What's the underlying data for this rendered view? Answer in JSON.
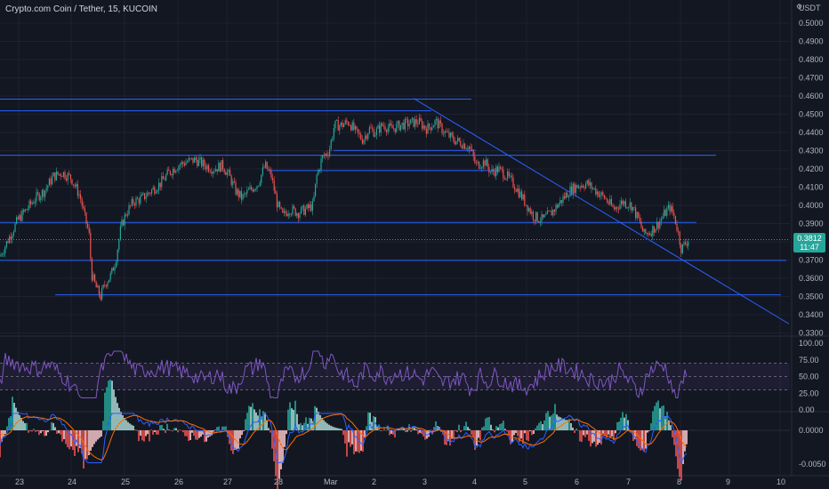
{
  "header": {
    "title": "Crypto.com Coin / Tether, 15, KUCOIN",
    "currency": "USDT"
  },
  "colors": {
    "background": "#131722",
    "bull": "#26a69a",
    "bear": "#ef5350",
    "hline": "#2962ff",
    "rsi": "#7e57c2",
    "macd": "#2962ff",
    "signal": "#ff6d00"
  },
  "price_badge": {
    "price": "0.3812",
    "countdown": "11:47"
  },
  "chart_data": [
    {
      "type": "candlestick",
      "title": "Crypto.com Coin / Tether, 15, KUCOIN",
      "y_unit": "USDT",
      "ylim": [
        0.33,
        0.505
      ],
      "y_ticks": [
        "0.5000",
        "0.4900",
        "0.4800",
        "0.4700",
        "0.4600",
        "0.4500",
        "0.4400",
        "0.4300",
        "0.4200",
        "0.4100",
        "0.4000",
        "0.3900",
        "0.3800",
        "0.3700",
        "0.3600",
        "0.3500",
        "0.3400",
        "0.3300"
      ],
      "x_ticks": [
        "23",
        "24",
        "25",
        "26",
        "27",
        "28",
        "Mar",
        "2",
        "3",
        "4",
        "5",
        "6",
        "7",
        "8",
        "9",
        "10"
      ],
      "price_path": [
        [
          0,
          0.372
        ],
        [
          10,
          0.382
        ],
        [
          20,
          0.392
        ],
        [
          30,
          0.398
        ],
        [
          40,
          0.404
        ],
        [
          50,
          0.408
        ],
        [
          60,
          0.416
        ],
        [
          70,
          0.418
        ],
        [
          80,
          0.415
        ],
        [
          90,
          0.405
        ],
        [
          96,
          0.392
        ],
        [
          100,
          0.385
        ],
        [
          103,
          0.362
        ],
        [
          108,
          0.355
        ],
        [
          113,
          0.35
        ],
        [
          118,
          0.357
        ],
        [
          125,
          0.362
        ],
        [
          130,
          0.37
        ],
        [
          136,
          0.388
        ],
        [
          142,
          0.396
        ],
        [
          150,
          0.402
        ],
        [
          160,
          0.404
        ],
        [
          170,
          0.408
        ],
        [
          180,
          0.412
        ],
        [
          190,
          0.418
        ],
        [
          200,
          0.422
        ],
        [
          210,
          0.424
        ],
        [
          220,
          0.425
        ],
        [
          230,
          0.422
        ],
        [
          240,
          0.42
        ],
        [
          250,
          0.422
        ],
        [
          258,
          0.416
        ],
        [
          265,
          0.408
        ],
        [
          272,
          0.404
        ],
        [
          280,
          0.408
        ],
        [
          290,
          0.412
        ],
        [
          298,
          0.422
        ],
        [
          305,
          0.416
        ],
        [
          312,
          0.4
        ],
        [
          318,
          0.394
        ],
        [
          325,
          0.398
        ],
        [
          335,
          0.396
        ],
        [
          345,
          0.398
        ],
        [
          352,
          0.4
        ],
        [
          356,
          0.416
        ],
        [
          362,
          0.426
        ],
        [
          370,
          0.43
        ],
        [
          376,
          0.444
        ],
        [
          384,
          0.444
        ],
        [
          392,
          0.446
        ],
        [
          400,
          0.44
        ],
        [
          408,
          0.436
        ],
        [
          415,
          0.442
        ],
        [
          422,
          0.44
        ],
        [
          430,
          0.444
        ],
        [
          440,
          0.442
        ],
        [
          450,
          0.444
        ],
        [
          460,
          0.445
        ],
        [
          470,
          0.446
        ],
        [
          480,
          0.442
        ],
        [
          490,
          0.446
        ],
        [
          500,
          0.44
        ],
        [
          510,
          0.436
        ],
        [
          520,
          0.434
        ],
        [
          528,
          0.432
        ],
        [
          535,
          0.422
        ],
        [
          545,
          0.424
        ],
        [
          552,
          0.418
        ],
        [
          560,
          0.42
        ],
        [
          570,
          0.416
        ],
        [
          580,
          0.41
        ],
        [
          590,
          0.402
        ],
        [
          600,
          0.394
        ],
        [
          610,
          0.392
        ],
        [
          620,
          0.396
        ],
        [
          630,
          0.402
        ],
        [
          640,
          0.408
        ],
        [
          650,
          0.411
        ],
        [
          660,
          0.412
        ],
        [
          670,
          0.408
        ],
        [
          680,
          0.404
        ],
        [
          690,
          0.398
        ],
        [
          700,
          0.402
        ],
        [
          710,
          0.4
        ],
        [
          718,
          0.392
        ],
        [
          724,
          0.384
        ],
        [
          732,
          0.386
        ],
        [
          740,
          0.39
        ],
        [
          748,
          0.396
        ],
        [
          753,
          0.399
        ],
        [
          758,
          0.394
        ],
        [
          762,
          0.386
        ],
        [
          766,
          0.376
        ],
        [
          770,
          0.379
        ],
        [
          774,
          0.381
        ]
      ],
      "horizontal_levels": [
        {
          "price": 0.4583,
          "x_start": 0,
          "x_end": 530
        },
        {
          "price": 0.4519,
          "x_start": 0,
          "x_end": 485
        },
        {
          "price": 0.4275,
          "x_start": 0,
          "x_end": 805
        },
        {
          "price": 0.4301,
          "x_start": 375,
          "x_end": 535
        },
        {
          "price": 0.4191,
          "x_start": 300,
          "x_end": 560
        },
        {
          "price": 0.3906,
          "x_start": 0,
          "x_end": 783
        },
        {
          "price": 0.3698,
          "x_start": 0,
          "x_end": 884
        },
        {
          "price": 0.3509,
          "x_start": 62,
          "x_end": 878
        }
      ],
      "trendline": {
        "start": [
          465,
          0.4587
        ],
        "end": [
          887,
          0.335
        ]
      },
      "current_price": 0.3812
    },
    {
      "type": "line",
      "name": "RSI",
      "ylim": [
        0,
        100
      ],
      "y_ticks": [
        "100.00",
        "75.00",
        "50.00",
        "25.00",
        "0.00"
      ],
      "band": [
        30,
        70
      ]
    },
    {
      "type": "histogram",
      "name": "MACD",
      "ylim": [
        -0.006,
        0.003
      ],
      "y_ticks": [
        "0.0000",
        "-0.0050"
      ]
    }
  ]
}
